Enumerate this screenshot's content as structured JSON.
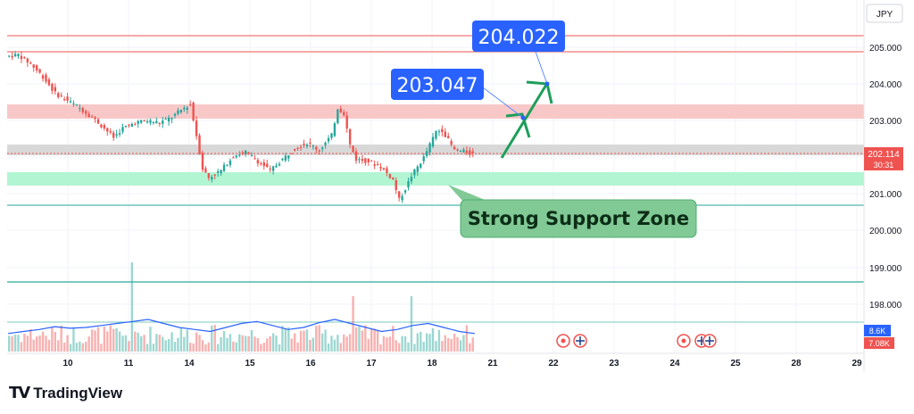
{
  "chart_data": {
    "type": "candlestick",
    "currency": "JPY",
    "y_ticks": [
      "205.000",
      "204.000",
      "203.000",
      "202.000",
      "201.000",
      "200.000",
      "199.000",
      "198.000"
    ],
    "x_ticks": [
      "10",
      "11",
      "14",
      "15",
      "16",
      "17",
      "18",
      "21",
      "22",
      "23",
      "24",
      "25",
      "28",
      "29"
    ],
    "last_price": "202.114",
    "countdown": "30:31",
    "volume_labels": [
      "8.6K",
      "7.08K"
    ],
    "price_path": [
      [
        0,
        204.75
      ],
      [
        4,
        204.8
      ],
      [
        8,
        204.55
      ],
      [
        12,
        204.2
      ],
      [
        16,
        203.75
      ],
      [
        20,
        203.55
      ],
      [
        24,
        203.35
      ],
      [
        28,
        203.1
      ],
      [
        32,
        202.8
      ],
      [
        35,
        202.55
      ],
      [
        38,
        202.8
      ],
      [
        42,
        202.95
      ],
      [
        46,
        203.0
      ],
      [
        50,
        202.95
      ],
      [
        54,
        203.1
      ],
      [
        58,
        203.35
      ],
      [
        60,
        203.45
      ],
      [
        62,
        202.6
      ],
      [
        64,
        201.7
      ],
      [
        66,
        201.45
      ],
      [
        70,
        201.65
      ],
      [
        74,
        202.05
      ],
      [
        78,
        202.15
      ],
      [
        82,
        201.9
      ],
      [
        86,
        201.65
      ],
      [
        90,
        201.95
      ],
      [
        94,
        202.25
      ],
      [
        98,
        202.4
      ],
      [
        102,
        202.2
      ],
      [
        106,
        202.6
      ],
      [
        108,
        203.35
      ],
      [
        110,
        203.2
      ],
      [
        112,
        202.35
      ],
      [
        114,
        201.95
      ],
      [
        118,
        201.9
      ],
      [
        122,
        201.75
      ],
      [
        126,
        201.4
      ],
      [
        128,
        200.85
      ],
      [
        130,
        201.15
      ],
      [
        132,
        201.5
      ],
      [
        136,
        202.0
      ],
      [
        140,
        202.7
      ],
      [
        142,
        202.75
      ],
      [
        146,
        202.2
      ],
      [
        150,
        202.15
      ],
      [
        152,
        202.1
      ]
    ],
    "volume_ma": [
      0.45,
      0.5,
      0.55,
      0.62,
      0.58,
      0.6,
      0.65,
      0.7,
      0.75,
      0.8,
      0.7,
      0.6,
      0.55,
      0.5,
      0.6,
      0.7,
      0.75,
      0.65,
      0.55,
      0.6,
      0.72,
      0.8,
      0.7,
      0.6,
      0.5,
      0.55,
      0.65,
      0.7,
      0.6,
      0.5,
      0.45
    ],
    "annotations": {
      "target_1": "203.047",
      "target_2": "204.022",
      "support_label": "Strong Support Zone"
    }
  },
  "colors": {
    "up": "#26a69a",
    "down": "#ef5350",
    "callout": "#2962ff",
    "support_zone": "#b2f5d3",
    "resistance_zone": "#f8c8c8",
    "label_box": "#81c995"
  },
  "branding": {
    "logo_mark": "TV",
    "name": "TradingView"
  }
}
